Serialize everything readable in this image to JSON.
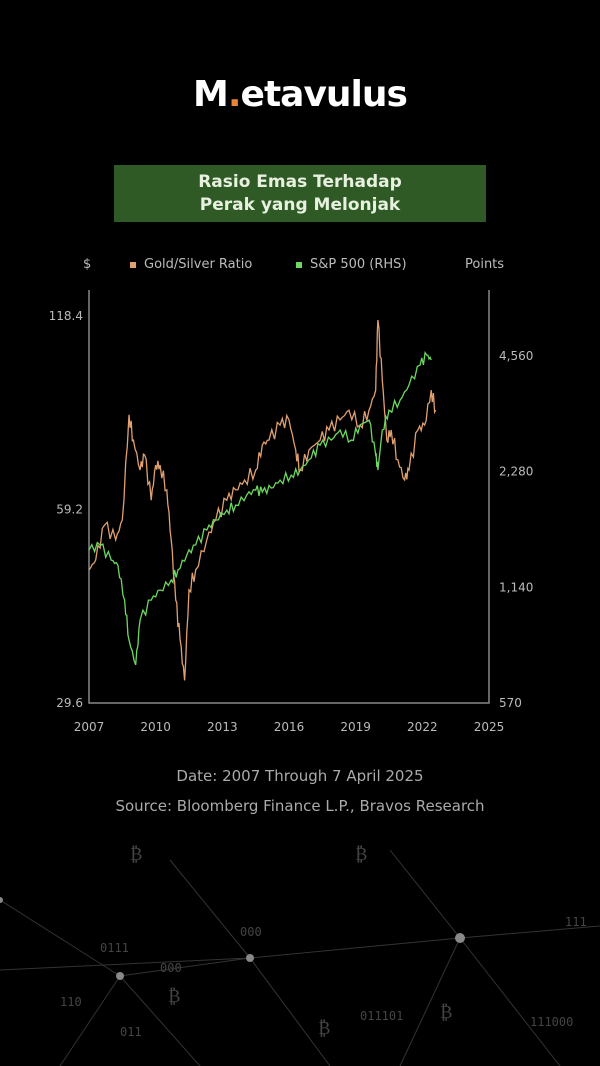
{
  "brand": {
    "logo_prefix": "M",
    "logo_dot": ".",
    "logo_rest": "etavulus",
    "accent": "#e8833a"
  },
  "title": {
    "line1": "Rasio Emas Terhadap",
    "line2": "Perak yang Melonjak",
    "bg": "#2f5a25"
  },
  "footer": {
    "date": "Date: 2007 Through 7 April 2025",
    "source": "Source: Bloomberg Finance L.P., Bravos Research"
  },
  "chart_data": {
    "type": "line",
    "title": "Rasio Emas Terhadap Perak yang Melonjak",
    "left_axis_label": "$",
    "right_axis_label": "Points",
    "left_ticks": [
      "118.4",
      "59.2",
      "29.6"
    ],
    "left_tick_values": [
      118.4,
      59.2,
      29.6
    ],
    "right_ticks": [
      "4,560",
      "2,280",
      "1,140",
      "570"
    ],
    "right_tick_values": [
      4560,
      2280,
      1140,
      570
    ],
    "x_ticks": [
      "2007",
      "2010",
      "2013",
      "2016",
      "2019",
      "2022",
      "2025"
    ],
    "xlim": [
      2007,
      2025
    ],
    "ylim_left": [
      29.6,
      118.4
    ],
    "ylim_right": [
      570,
      4560
    ],
    "scale": "log",
    "legend_position": "top",
    "series": [
      {
        "name": "Gold/Silver Ratio",
        "axis": "left",
        "color": "#e0a070",
        "x": [
          2007.0,
          2007.3,
          2007.7,
          2008.2,
          2008.5,
          2008.8,
          2009.0,
          2009.3,
          2009.5,
          2009.8,
          2010.0,
          2010.2,
          2010.5,
          2010.7,
          2010.9,
          2011.1,
          2011.3,
          2011.5,
          2011.8,
          2012.3,
          2012.7,
          2013.2,
          2013.6,
          2014.0,
          2014.5,
          2014.8,
          2015.1,
          2015.6,
          2016.0,
          2016.3,
          2016.5,
          2016.9,
          2017.4,
          2017.8,
          2018.3,
          2018.7,
          2019.2,
          2019.6,
          2019.9,
          2020.0,
          2020.2,
          2020.4,
          2020.6,
          2020.9,
          2021.2,
          2021.4,
          2021.8,
          2022.1,
          2022.4,
          2022.6
        ],
        "values": [
          47.7,
          49.4,
          56.0,
          53.1,
          57.0,
          83.1,
          75.9,
          68.2,
          72.0,
          61.2,
          69.4,
          69.4,
          63.5,
          53.1,
          42.8,
          37.1,
          32.1,
          44.4,
          47.7,
          53.1,
          57.0,
          61.2,
          63.5,
          65.8,
          68.2,
          74.6,
          75.9,
          80.1,
          81.6,
          73.3,
          68.2,
          73.3,
          75.9,
          78.7,
          81.6,
          84.5,
          80.1,
          84.5,
          90.8,
          116.7,
          94.1,
          75.9,
          78.7,
          70.7,
          65.8,
          68.2,
          78.7,
          80.1,
          90.8,
          84.5
        ]
      },
      {
        "name": "S&P 500 (RHS)",
        "axis": "right",
        "color": "#6cd860",
        "x": [
          2007.0,
          2007.5,
          2008.0,
          2008.3,
          2008.6,
          2008.8,
          2009.1,
          2009.3,
          2009.8,
          2010.2,
          2010.7,
          2011.0,
          2011.4,
          2011.8,
          2012.3,
          2012.7,
          2013.2,
          2013.6,
          2014.1,
          2014.5,
          2014.8,
          2015.2,
          2015.6,
          2016.1,
          2016.5,
          2017.0,
          2017.4,
          2017.9,
          2018.3,
          2018.8,
          2019.2,
          2019.6,
          2019.9,
          2020.0,
          2020.2,
          2020.5,
          2021.0,
          2021.4,
          2021.9,
          2022.2,
          2022.4
        ],
        "values": [
          1425,
          1469,
          1342,
          1303,
          1056,
          832,
          716,
          937,
          1056,
          1122,
          1191,
          1265,
          1383,
          1469,
          1607,
          1707,
          1811,
          1866,
          1982,
          2042,
          2018,
          2067,
          2168,
          2234,
          2302,
          2474,
          2674,
          2755,
          2926,
          2755,
          3015,
          3106,
          2518,
          2302,
          2926,
          3297,
          3501,
          3832,
          4318,
          4585,
          4451
        ]
      }
    ]
  }
}
